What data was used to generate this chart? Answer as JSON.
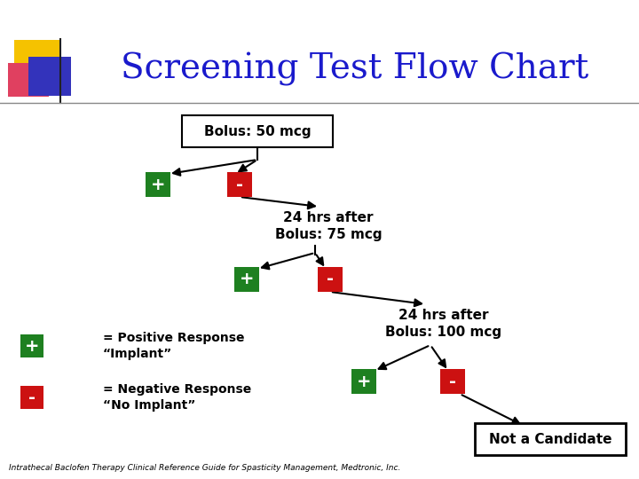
{
  "title": "Screening Test Flow Chart",
  "title_color": "#1a1acc",
  "title_fontsize": 28,
  "bg_color": "#ffffff",
  "box1_text": "Bolus: 50 mcg",
  "box2_text": "24 hrs after\nBolus: 75 mcg",
  "box3_text": "24 hrs after\nBolus: 100 mcg",
  "box4_text": "Not a Candidate",
  "green_color": "#1e8020",
  "red_color": "#cc1111",
  "legend_pos_text": "= Positive Response\n“Implant”",
  "legend_neg_text": "= Negative Response\n“No Implant”",
  "footer_text": "Intrathecal Baclofen Therapy Clinical Reference Guide for Spasticity Management, Medtronic, Inc.",
  "plus_label": "+",
  "minus_label": "-"
}
